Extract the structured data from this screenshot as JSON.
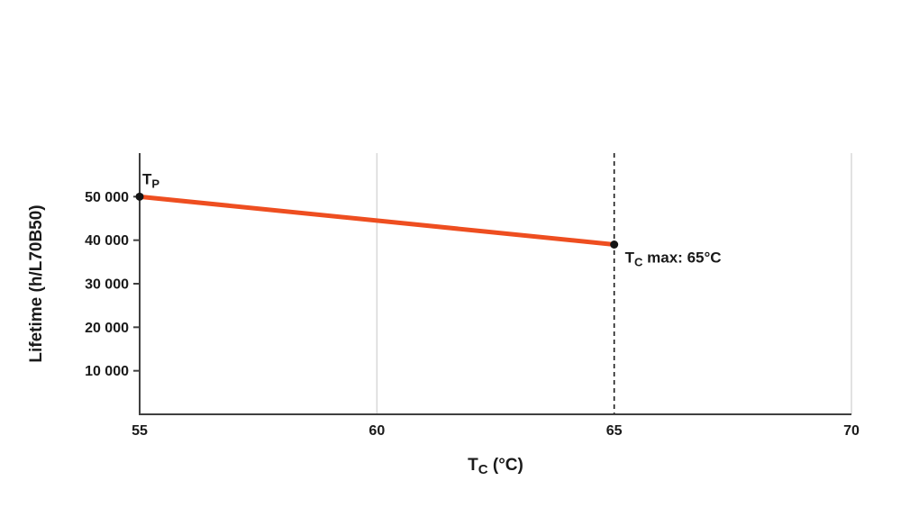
{
  "chart_data": {
    "type": "line",
    "title": "",
    "xlabel": "Tc (°C)",
    "xlabel_parts": {
      "base": "T",
      "sub": "C",
      "rest": " (°C)"
    },
    "ylabel": "Lifetime (h/L70B50)",
    "xlim": [
      55,
      70
    ],
    "ylim": [
      0,
      60000
    ],
    "x_ticks": [
      55,
      60,
      65,
      70
    ],
    "x_tick_labels": [
      "55",
      "60",
      "65",
      "70"
    ],
    "y_ticks": [
      10000,
      20000,
      30000,
      40000,
      50000
    ],
    "y_tick_labels": [
      "10 000",
      "20 000",
      "30 000",
      "40 000",
      "50 000"
    ],
    "grid": "vertical-only",
    "grid_x_values": [
      60,
      70
    ],
    "dashed_line_x": 65,
    "legend": "none",
    "series": [
      {
        "name": "lifetime",
        "color": "#ee4e20",
        "x": [
          55,
          65
        ],
        "y": [
          50000,
          39000
        ]
      }
    ],
    "points": [
      {
        "x": 55,
        "y": 50000,
        "label_base": "T",
        "label_sub": "P",
        "label_rest": "",
        "label_position": "above"
      },
      {
        "x": 65,
        "y": 39000,
        "label_base": "T",
        "label_sub": "C",
        "label_rest": " max: 65°C",
        "label_position": "right"
      }
    ],
    "colors": {
      "line": "#ee4e20",
      "axis": "#404040",
      "grid": "#d8d8d8",
      "dashed": "#1a1a1a",
      "text": "#1a1a1a",
      "point": "#141414"
    }
  }
}
